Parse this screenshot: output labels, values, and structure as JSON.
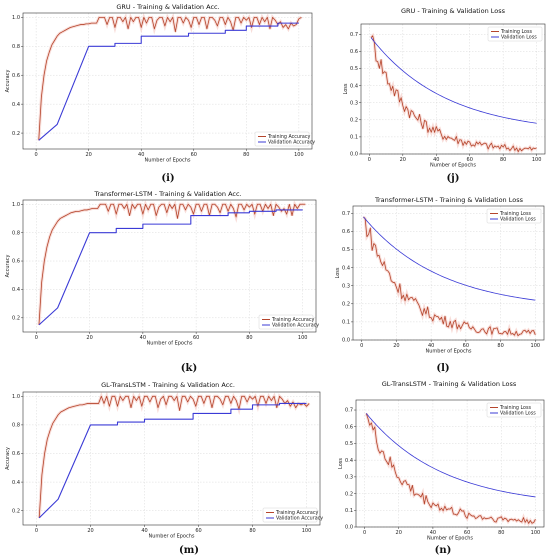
{
  "chart_data": [
    {
      "id": "i",
      "panel_label": "(i)",
      "type": "line",
      "title": "GRU - Training & Validation Acc.",
      "xlabel": "Number of Epochs",
      "ylabel": "Accuracy",
      "xlim": [
        -5,
        105
      ],
      "ylim": [
        0.09,
        1.03
      ],
      "xticks": [
        0,
        20,
        40,
        60,
        80,
        100
      ],
      "yticks": [
        0.2,
        0.4,
        0.6,
        0.8,
        1.0
      ],
      "yticklabels": [
        "0.2",
        "0.4",
        "0.6",
        "0.8",
        "1.0"
      ],
      "grid": true,
      "legend": "lower-right",
      "series": [
        {
          "name": "Training Accuracy",
          "color": "#b5452c",
          "kind": "train_acc",
          "values": [
            0.15,
            0.45,
            0.6,
            0.7,
            0.76,
            0.81,
            0.84,
            0.87,
            0.89,
            0.9,
            0.91,
            0.92,
            0.93,
            0.935,
            0.94,
            0.945,
            0.95,
            0.95,
            0.955,
            0.955,
            0.96,
            0.96,
            0.96,
            1.0,
            1.0,
            1.0,
            0.95,
            1.0,
            1.0,
            0.93,
            1.0,
            1.0,
            0.97,
            1.0,
            0.92,
            1.0,
            0.97,
            1.0,
            1.0,
            0.93,
            1.0,
            0.96,
            1.0,
            1.0,
            0.92,
            0.98,
            1.0,
            1.0,
            0.94,
            1.0,
            0.97,
            1.0,
            0.9,
            1.0,
            1.0,
            0.96,
            1.0,
            0.98,
            0.93,
            1.0,
            1.0,
            0.95,
            1.0,
            1.0,
            0.92,
            1.0,
            1.0,
            0.98,
            0.94,
            1.0,
            1.0,
            0.95,
            1.0,
            0.97,
            0.91,
            1.0,
            1.0,
            0.96,
            1.0,
            0.98,
            1.0,
            0.93,
            1.0,
            1.0,
            0.95,
            1.0,
            0.97,
            1.0,
            0.92,
            1.0,
            0.98,
            0.95,
            0.97,
            0.93,
            0.95,
            0.92,
            0.96,
            0.94,
            0.95,
            0.99,
            1.0
          ]
        },
        {
          "name": "Validation Accuracy",
          "color": "#3b3bd6",
          "kind": "val_acc",
          "values": [
            [
              1,
              0.15
            ],
            [
              8,
              0.26
            ],
            [
              20,
              0.8
            ],
            [
              30,
              0.8
            ],
            [
              30,
              0.82
            ],
            [
              40,
              0.82
            ],
            [
              40,
              0.87
            ],
            [
              58,
              0.87
            ],
            [
              58,
              0.89
            ],
            [
              72,
              0.89
            ],
            [
              72,
              0.91
            ],
            [
              80,
              0.91
            ],
            [
              80,
              0.94
            ],
            [
              92,
              0.94
            ],
            [
              92,
              0.96
            ],
            [
              100,
              0.96
            ]
          ]
        }
      ]
    },
    {
      "id": "j",
      "panel_label": "(j)",
      "type": "line",
      "title": "GRU - Training & Validation Loss",
      "xlabel": "Number of Epochs",
      "ylabel": "Loss",
      "xlim": [
        -5,
        105
      ],
      "ylim": [
        0,
        0.76
      ],
      "xticks": [
        0,
        20,
        40,
        60,
        80,
        100
      ],
      "yticks": [
        0.0,
        0.1,
        0.2,
        0.3,
        0.4,
        0.5,
        0.6,
        0.7
      ],
      "yticklabels": [
        "0.0",
        "0.1",
        "0.2",
        "0.3",
        "0.4",
        "0.5",
        "0.6",
        "0.7"
      ],
      "grid": true,
      "legend": "upper-right",
      "series": [
        {
          "name": "Training Loss",
          "color": "#b5452c",
          "kind": "train_loss",
          "start": 0.68,
          "end": 0.02
        },
        {
          "name": "Validation Loss",
          "color": "#3b3bd6",
          "kind": "val_loss",
          "start": 0.68,
          "end": 0.18
        }
      ]
    },
    {
      "id": "k",
      "panel_label": "(k)",
      "type": "line",
      "title": "Transformer-LSTM - Training & Validation Acc.",
      "xlabel": "Number of Epochs",
      "ylabel": "Accuracy",
      "xlim": [
        -5,
        105
      ],
      "ylim": [
        0.1,
        1.03
      ],
      "xticks": [
        0,
        20,
        40,
        60,
        80,
        100
      ],
      "yticks": [
        0.2,
        0.4,
        0.6,
        0.8,
        1.0
      ],
      "yticklabels": [
        "0.2",
        "0.4",
        "0.6",
        "0.8",
        "1.0"
      ],
      "grid": true,
      "legend": "lower-right",
      "series": [
        {
          "name": "Training Accuracy",
          "color": "#b5452c",
          "kind": "train_acc",
          "values": [
            0.15,
            0.45,
            0.6,
            0.7,
            0.77,
            0.82,
            0.85,
            0.88,
            0.9,
            0.91,
            0.92,
            0.93,
            0.94,
            0.945,
            0.95,
            0.95,
            0.955,
            0.96,
            0.96,
            0.965,
            0.97,
            0.97,
            0.97,
            1.0,
            1.0,
            1.0,
            0.95,
            1.0,
            1.0,
            0.93,
            1.0,
            1.0,
            0.97,
            1.0,
            0.92,
            1.0,
            0.97,
            1.0,
            1.0,
            0.93,
            1.0,
            0.96,
            1.0,
            1.0,
            0.92,
            0.98,
            1.0,
            1.0,
            0.94,
            1.0,
            0.97,
            1.0,
            0.9,
            1.0,
            1.0,
            0.96,
            1.0,
            0.98,
            0.93,
            1.0,
            1.0,
            0.95,
            1.0,
            1.0,
            0.92,
            1.0,
            1.0,
            0.98,
            0.94,
            1.0,
            1.0,
            0.95,
            1.0,
            0.97,
            0.91,
            1.0,
            1.0,
            0.96,
            1.0,
            0.98,
            1.0,
            0.93,
            1.0,
            1.0,
            0.95,
            1.0,
            0.97,
            1.0,
            0.92,
            1.0,
            0.98,
            0.95,
            0.97,
            0.93,
            1.0,
            0.92,
            1.0,
            0.97,
            1.0,
            1.0,
            1.0
          ]
        },
        {
          "name": "Validation Accuracy",
          "color": "#3b3bd6",
          "kind": "val_acc",
          "values": [
            [
              1,
              0.15
            ],
            [
              8,
              0.27
            ],
            [
              20,
              0.8
            ],
            [
              30,
              0.8
            ],
            [
              30,
              0.83
            ],
            [
              40,
              0.83
            ],
            [
              40,
              0.86
            ],
            [
              58,
              0.86
            ],
            [
              58,
              0.92
            ],
            [
              72,
              0.92
            ],
            [
              72,
              0.94
            ],
            [
              80,
              0.94
            ],
            [
              80,
              0.95
            ],
            [
              90,
              0.95
            ],
            [
              90,
              0.96
            ],
            [
              100,
              0.96
            ]
          ]
        }
      ]
    },
    {
      "id": "l",
      "panel_label": "(l)",
      "type": "line",
      "title": "Transformer-LSTM - Training & Validation Loss",
      "xlabel": "Number of Epochs",
      "ylabel": "Loss",
      "xlim": [
        -5,
        105
      ],
      "ylim": [
        0,
        0.74
      ],
      "xticks": [
        0,
        20,
        40,
        60,
        80,
        100
      ],
      "yticks": [
        0.0,
        0.1,
        0.2,
        0.3,
        0.4,
        0.5,
        0.6,
        0.7
      ],
      "yticklabels": [
        "0.0",
        "0.1",
        "0.2",
        "0.3",
        "0.4",
        "0.5",
        "0.6",
        "0.7"
      ],
      "grid": true,
      "legend": "upper-right",
      "series": [
        {
          "name": "Training Loss",
          "color": "#b5452c",
          "kind": "train_loss",
          "start": 0.68,
          "end": 0.03
        },
        {
          "name": "Validation Loss",
          "color": "#3b3bd6",
          "kind": "val_loss",
          "start": 0.68,
          "end": 0.22
        }
      ]
    },
    {
      "id": "m",
      "panel_label": "(m)",
      "type": "line",
      "title": "GL-TransLSTM - Training & Validation Acc.",
      "xlabel": "Number of Epochs",
      "ylabel": "Accuracy",
      "xlim": [
        -5,
        105
      ],
      "ylim": [
        0.1,
        1.03
      ],
      "xticks": [
        0,
        20,
        40,
        60,
        80,
        100
      ],
      "yticks": [
        0.2,
        0.4,
        0.6,
        0.8,
        1.0
      ],
      "yticklabels": [
        "0.2",
        "0.4",
        "0.6",
        "0.8",
        "1.0"
      ],
      "grid": true,
      "legend": "lower-right",
      "series": [
        {
          "name": "Training Accuracy",
          "color": "#b5452c",
          "kind": "train_acc",
          "values": [
            0.15,
            0.45,
            0.6,
            0.7,
            0.76,
            0.81,
            0.84,
            0.87,
            0.89,
            0.9,
            0.91,
            0.92,
            0.925,
            0.93,
            0.935,
            0.94,
            0.94,
            0.945,
            0.95,
            0.95,
            0.95,
            0.95,
            0.95,
            1.0,
            0.95,
            1.0,
            0.93,
            1.0,
            1.0,
            0.93,
            1.0,
            0.97,
            1.0,
            1.0,
            0.92,
            1.0,
            0.97,
            1.0,
            0.93,
            1.0,
            1.0,
            0.96,
            1.0,
            1.0,
            0.92,
            0.98,
            1.0,
            0.94,
            1.0,
            1.0,
            0.97,
            1.0,
            0.9,
            1.0,
            1.0,
            0.96,
            1.0,
            0.98,
            0.93,
            1.0,
            1.0,
            0.95,
            1.0,
            1.0,
            0.92,
            1.0,
            1.0,
            0.98,
            0.94,
            1.0,
            1.0,
            0.95,
            1.0,
            0.97,
            0.91,
            1.0,
            1.0,
            0.96,
            1.0,
            0.98,
            1.0,
            0.93,
            1.0,
            1.0,
            0.95,
            1.0,
            0.97,
            1.0,
            0.92,
            1.0,
            0.98,
            0.95,
            0.97,
            0.93,
            0.96,
            0.92,
            0.95,
            0.94,
            0.95,
            0.93,
            0.95
          ]
        },
        {
          "name": "Validation Accuracy",
          "color": "#3b3bd6",
          "kind": "val_acc",
          "values": [
            [
              1,
              0.15
            ],
            [
              8,
              0.28
            ],
            [
              20,
              0.8
            ],
            [
              30,
              0.8
            ],
            [
              30,
              0.82
            ],
            [
              40,
              0.82
            ],
            [
              40,
              0.84
            ],
            [
              58,
              0.84
            ],
            [
              58,
              0.88
            ],
            [
              72,
              0.88
            ],
            [
              72,
              0.91
            ],
            [
              80,
              0.91
            ],
            [
              80,
              0.94
            ],
            [
              90,
              0.94
            ],
            [
              90,
              0.95
            ],
            [
              100,
              0.95
            ]
          ]
        }
      ]
    },
    {
      "id": "n",
      "panel_label": "(n)",
      "type": "line",
      "title": "GL-TransLSTM - Training & Validation Loss",
      "xlabel": "Number of Epochs",
      "ylabel": "Loss",
      "xlim": [
        -5,
        105
      ],
      "ylim": [
        0,
        0.76
      ],
      "xticks": [
        0,
        20,
        40,
        60,
        80,
        100
      ],
      "yticks": [
        0.0,
        0.1,
        0.2,
        0.3,
        0.4,
        0.5,
        0.6,
        0.7
      ],
      "yticklabels": [
        "0.0",
        "0.1",
        "0.2",
        "0.3",
        "0.4",
        "0.5",
        "0.6",
        "0.7"
      ],
      "grid": true,
      "legend": "upper-right",
      "series": [
        {
          "name": "Training Loss",
          "color": "#b5452c",
          "kind": "train_loss",
          "start": 0.68,
          "end": 0.03
        },
        {
          "name": "Validation Loss",
          "color": "#3b3bd6",
          "kind": "val_loss",
          "start": 0.68,
          "end": 0.18
        }
      ]
    }
  ]
}
